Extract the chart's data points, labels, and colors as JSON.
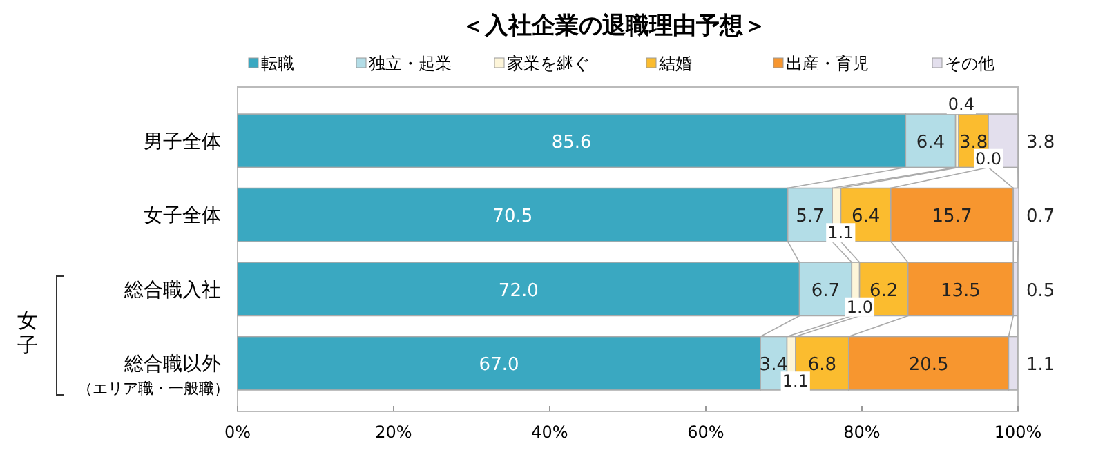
{
  "chart_data": {
    "type": "bar",
    "orientation": "horizontal",
    "stacked": true,
    "title": "＜入社企業の退職理由予想＞",
    "categories": [
      "男子全体",
      "女子全体",
      "総合職入社",
      "総合職以外"
    ],
    "series": [
      {
        "name": "転職",
        "color": "#3aa8c1",
        "values": [
          85.6,
          70.5,
          72.0,
          67.0
        ],
        "value_labels": [
          "85.6",
          "70.5",
          "72.0",
          "67.0"
        ]
      },
      {
        "name": "独立・起業",
        "color": "#b3dde7",
        "values": [
          6.4,
          5.7,
          6.7,
          3.4
        ],
        "value_labels": [
          "6.4",
          "5.7",
          "6.7",
          "3.4"
        ]
      },
      {
        "name": "家業を継ぐ",
        "color": "#fdf5d9",
        "values": [
          0.4,
          1.1,
          1.0,
          1.1
        ],
        "value_labels": [
          "0.4",
          "1.1",
          "1.0",
          "1.1"
        ]
      },
      {
        "name": "結婚",
        "color": "#fbbc2f",
        "values": [
          3.8,
          6.4,
          6.2,
          6.8
        ],
        "value_labels": [
          "3.8",
          "6.4",
          "6.2",
          "6.8"
        ]
      },
      {
        "name": "出産・育児",
        "color": "#f7962f",
        "values": [
          0.0,
          15.7,
          13.5,
          20.5
        ],
        "value_labels": [
          "0.0",
          "15.7",
          "13.5",
          "20.5"
        ]
      },
      {
        "name": "その他",
        "color": "#e3dfed",
        "values": [
          3.8,
          0.7,
          0.5,
          1.1
        ],
        "value_labels": [
          "3.8",
          "0.7",
          "0.5",
          "1.1"
        ]
      }
    ],
    "xlim": [
      0,
      100
    ],
    "xticks": [
      {
        "value": 0,
        "label": "0%"
      },
      {
        "value": 20,
        "label": "20%"
      },
      {
        "value": 40,
        "label": "40%"
      },
      {
        "value": 60,
        "label": "60%"
      },
      {
        "value": 80,
        "label": "80%"
      },
      {
        "value": 100,
        "label": "100%"
      }
    ],
    "legend": "top",
    "grid": false,
    "annotations": [
      "女子",
      "（エリア職・一般職）"
    ]
  }
}
